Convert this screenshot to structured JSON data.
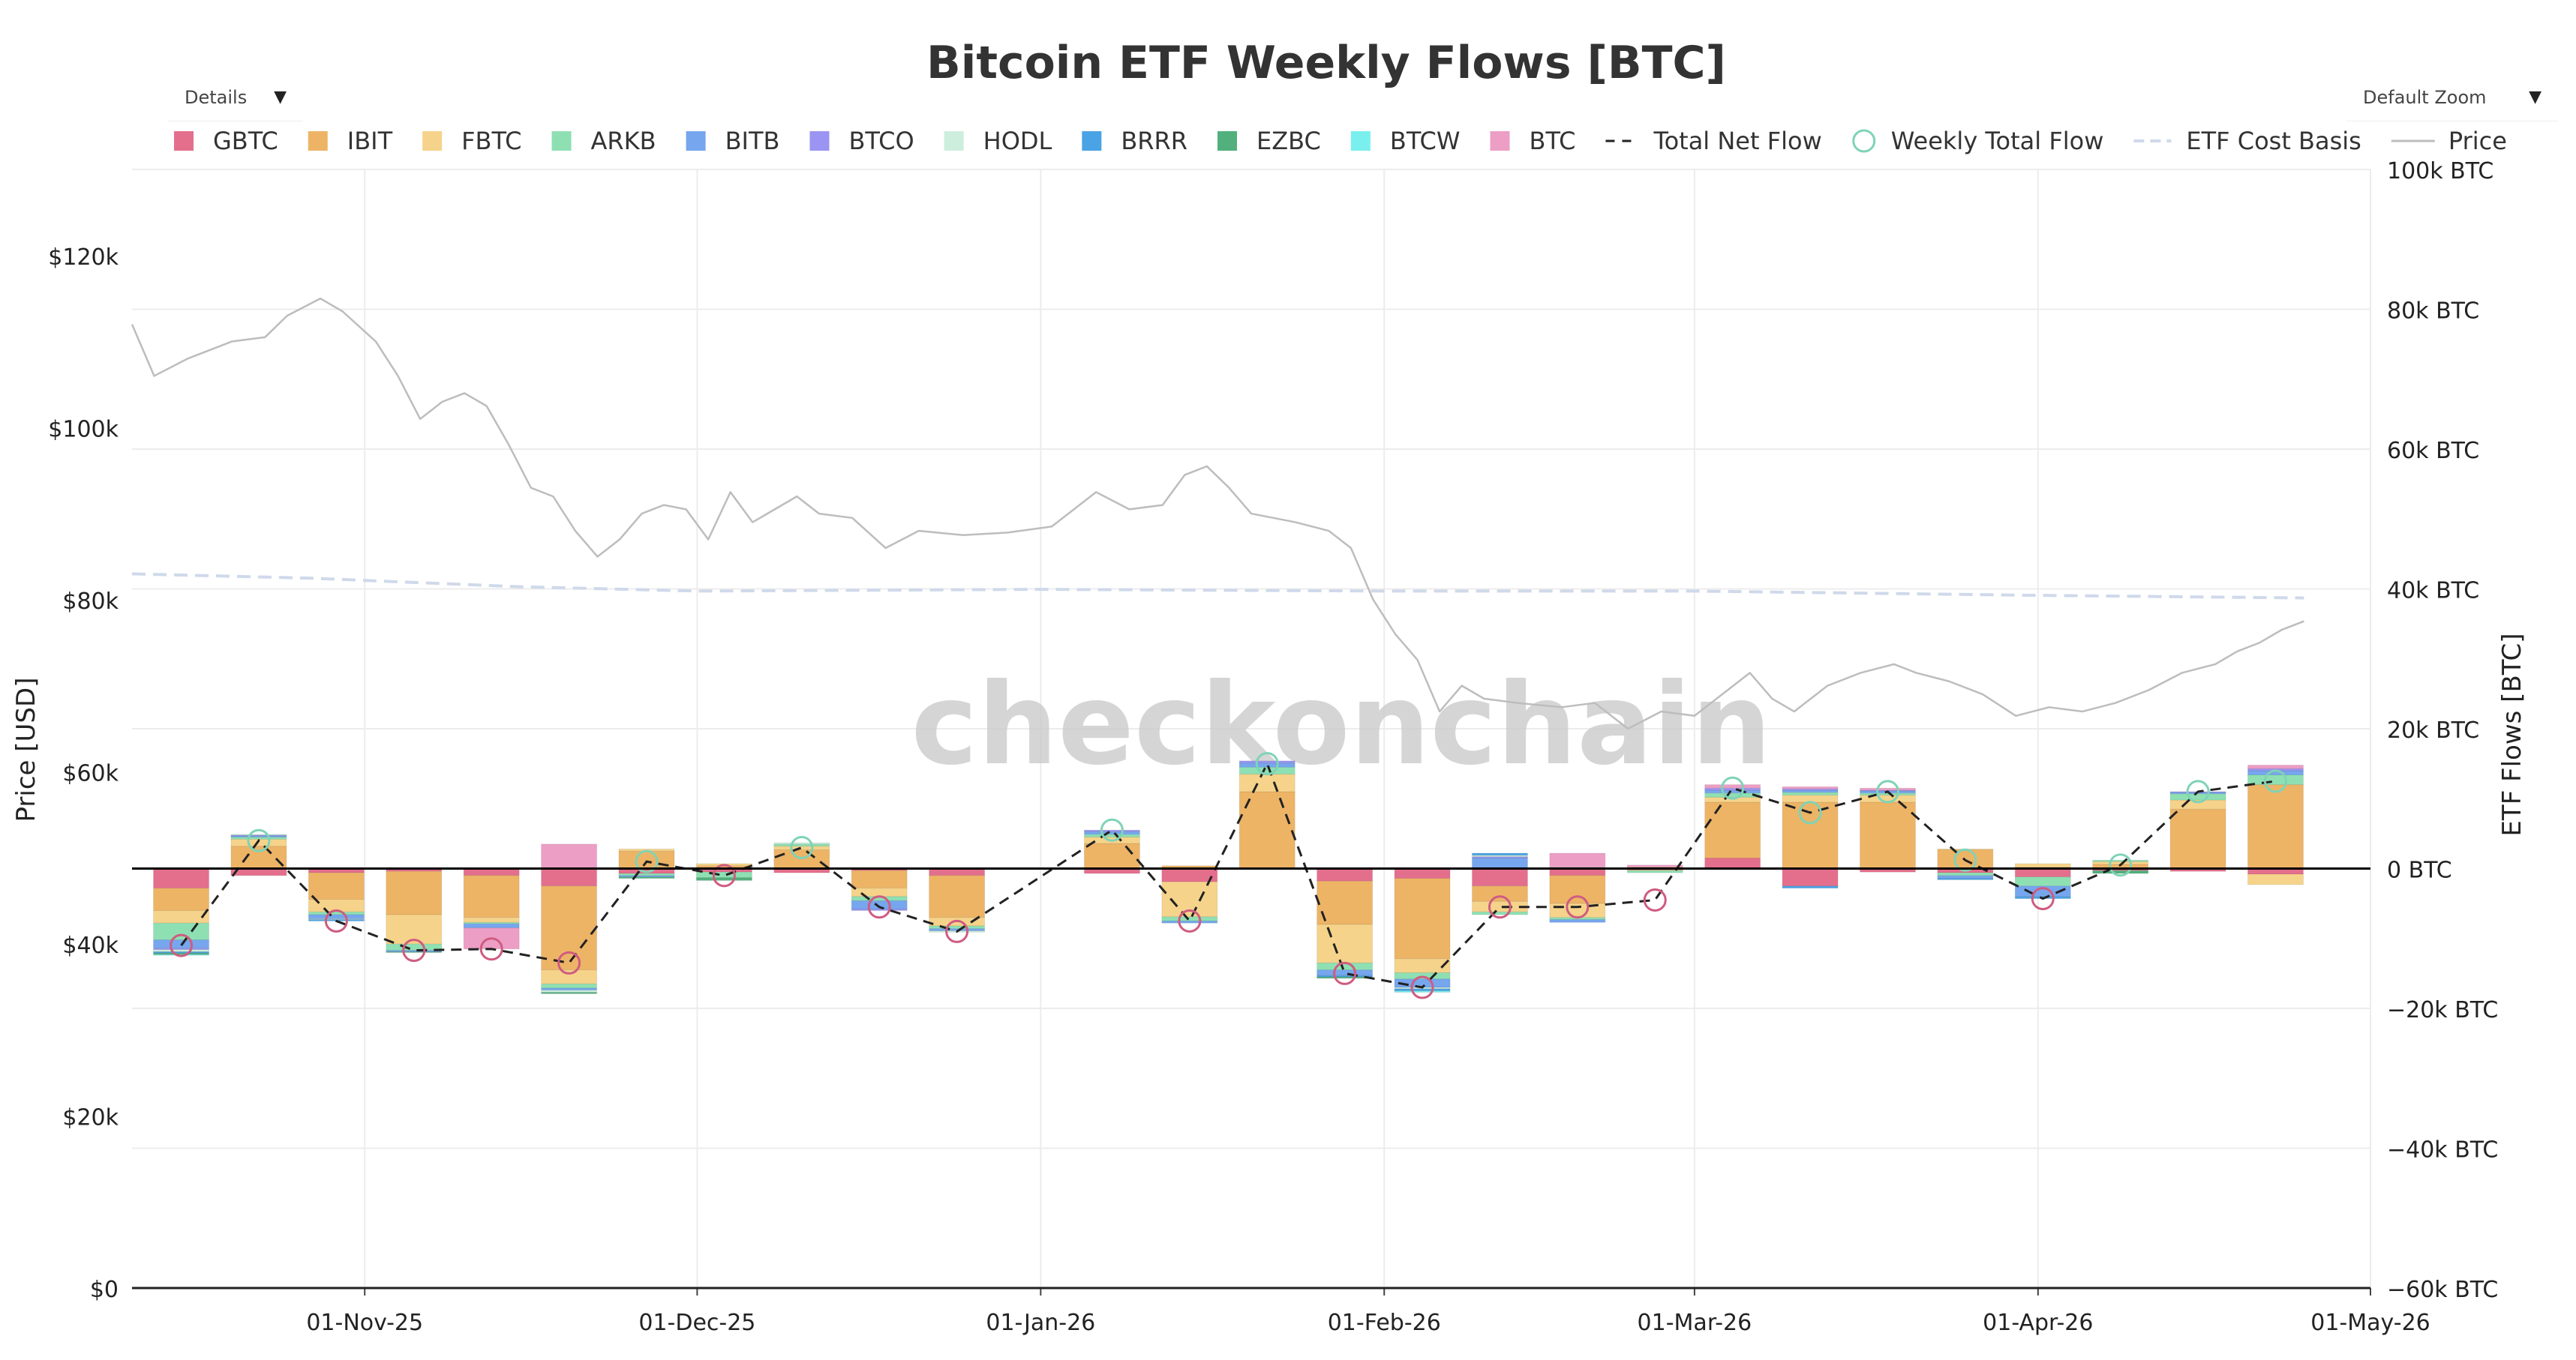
{
  "controls": {
    "details_label": "Details",
    "zoom_label": "Default Zoom",
    "caret": "▼"
  },
  "watermark": "checkonchain",
  "colors": {
    "GBTC": "#e46f8d",
    "IBIT": "#edb466",
    "FBTC": "#f6d38a",
    "ARKB": "#8ee0b3",
    "BITB": "#76a6ee",
    "BTCO": "#9b94f2",
    "HODL": "#cdeedd",
    "BRRR": "#4aa3e4",
    "EZBC": "#52b07c",
    "BTCW": "#7af0ee",
    "BTC": "#ec9ec5",
    "net_flow": "#222222",
    "marker_pos": "#7fd3b6",
    "marker_neg": "#cf5c80",
    "cost_basis": "#cfd9ea",
    "price": "#bdbdbd",
    "grid": "#ececec",
    "zero": "#000000"
  },
  "chart_data": {
    "type": "bar",
    "title": "Bitcoin ETF Weekly Flows [BTC]",
    "ylabel_left": "Price [USD]",
    "ylabel_right": "ETF Flows [BTC]",
    "y_left_range": [
      0,
      130000
    ],
    "y_right_range": [
      -60000,
      100000
    ],
    "x_range": [
      "2025-10-11",
      "2026-05-01"
    ],
    "left_ticks": [
      "$0",
      "$20k",
      "$40k",
      "$60k",
      "$80k",
      "$100k",
      "$120k"
    ],
    "right_ticks": [
      "−60k BTC",
      "−40k BTC",
      "−20k BTC",
      "0 BTC",
      "20k BTC",
      "40k BTC",
      "60k BTC",
      "80k BTC",
      "100k BTC"
    ],
    "x_ticks": [
      {
        "date": "2025-11-01",
        "label": "01-Nov-25"
      },
      {
        "date": "2025-12-01",
        "label": "01-Dec-25"
      },
      {
        "date": "2026-01-01",
        "label": "01-Jan-26"
      },
      {
        "date": "2026-02-01",
        "label": "01-Feb-26"
      },
      {
        "date": "2026-03-01",
        "label": "01-Mar-26"
      },
      {
        "date": "2026-04-01",
        "label": "01-Apr-26"
      },
      {
        "date": "2026-05-01",
        "label": "01-May-26"
      }
    ],
    "legend": [
      {
        "name": "GBTC",
        "kind": "square"
      },
      {
        "name": "IBIT",
        "kind": "square"
      },
      {
        "name": "FBTC",
        "kind": "square"
      },
      {
        "name": "ARKB",
        "kind": "square"
      },
      {
        "name": "BITB",
        "kind": "square"
      },
      {
        "name": "BTCO",
        "kind": "square"
      },
      {
        "name": "HODL",
        "kind": "square"
      },
      {
        "name": "BRRR",
        "kind": "square"
      },
      {
        "name": "EZBC",
        "kind": "square"
      },
      {
        "name": "BTCW",
        "kind": "square"
      },
      {
        "name": "BTC",
        "kind": "square"
      },
      {
        "name": "Total Net Flow",
        "kind": "dash"
      },
      {
        "name": "Weekly Total Flow",
        "kind": "circle"
      },
      {
        "name": "ETF Cost Basis",
        "kind": "lightdash"
      },
      {
        "name": "Price",
        "kind": "line"
      }
    ],
    "series_order": [
      "GBTC",
      "IBIT",
      "FBTC",
      "ARKB",
      "BITB",
      "BTCO",
      "HODL",
      "BRRR",
      "EZBC",
      "BTCW",
      "BTC"
    ],
    "weeks": [
      {
        "date": "2025-10-13",
        "total": -11000,
        "flows": {
          "GBTC": -2800,
          "IBIT": -3200,
          "FBTC": -1800,
          "ARKB": -2400,
          "BITB": -1200,
          "BTCO": -200,
          "HODL": -300,
          "BRRR": -200,
          "EZBC": -200,
          "BTCW": -100
        }
      },
      {
        "date": "2025-10-20",
        "total": 4000,
        "flows": {
          "IBIT": 3200,
          "FBTC": 1000,
          "ARKB": 300,
          "BITB": 200,
          "BTCO": 100,
          "HODL": 100,
          "GBTC": -1000
        }
      },
      {
        "date": "2025-10-27",
        "total": -7500,
        "flows": {
          "GBTC": -600,
          "IBIT": -3800,
          "FBTC": -1800,
          "ARKB": -400,
          "BITB": -600,
          "BRRR": -200,
          "HODL": -100
        }
      },
      {
        "date": "2025-11-03",
        "total": -11700,
        "flows": {
          "GBTC": -400,
          "IBIT": -6200,
          "FBTC": -4200,
          "ARKB": -900,
          "BITB": -200,
          "EZBC": -100
        }
      },
      {
        "date": "2025-11-10",
        "total": -11500,
        "flows": {
          "GBTC": -1000,
          "IBIT": -6000,
          "FBTC": -700,
          "ARKB": -200,
          "BITB": -600,
          "BTC": -3000
        }
      },
      {
        "date": "2025-11-17",
        "total": -13500,
        "flows": {
          "BTC": 3500,
          "GBTC": -2500,
          "IBIT": -12000,
          "FBTC": -2000,
          "ARKB": -600,
          "BITB": -300,
          "HODL": -300,
          "EZBC": -200
        }
      },
      {
        "date": "2025-11-24",
        "total": 1000,
        "flows": {
          "IBIT": 2500,
          "FBTC": 300,
          "GBTC": -700,
          "ARKB": -300,
          "BITB": -200,
          "EZBC": -200
        }
      },
      {
        "date": "2025-12-01",
        "total": -1000,
        "flows": {
          "IBIT": 400,
          "FBTC": 300,
          "GBTC": -500,
          "ARKB": -800,
          "EZBC": -400
        }
      },
      {
        "date": "2025-12-08",
        "total": 3000,
        "flows": {
          "IBIT": 2700,
          "FBTC": 500,
          "ARKB": 300,
          "HODL": 200,
          "GBTC": -600
        }
      },
      {
        "date": "2025-12-15",
        "total": -5500,
        "flows": {
          "GBTC": -300,
          "IBIT": -2500,
          "FBTC": -1200,
          "ARKB": -600,
          "BITB": -1200,
          "BTCO": -200
        }
      },
      {
        "date": "2025-12-22",
        "total": -9000,
        "flows": {
          "GBTC": -1000,
          "IBIT": -6000,
          "FBTC": -1200,
          "ARKB": -400,
          "BITB": -300,
          "HODL": -200
        }
      },
      {
        "date": "2026-01-05",
        "total": 5500,
        "flows": {
          "IBIT": 3600,
          "FBTC": 900,
          "ARKB": 400,
          "BITB": 400,
          "BTCO": 200,
          "GBTC": -700
        }
      },
      {
        "date": "2026-01-12",
        "total": -7500,
        "flows": {
          "IBIT": 400,
          "GBTC": -1900,
          "FBTC": -5000,
          "ARKB": -600,
          "BITB": -300
        }
      },
      {
        "date": "2026-01-19",
        "total": 15000,
        "flows": {
          "IBIT": 11000,
          "FBTC": 2500,
          "ARKB": 1000,
          "BITB": 600,
          "BTCO": 300
        }
      },
      {
        "date": "2026-01-26",
        "total": -15000,
        "flows": {
          "GBTC": -1800,
          "IBIT": -6200,
          "FBTC": -5500,
          "ARKB": -1000,
          "BITB": -800,
          "BRRR": -200,
          "EZBC": -200
        }
      },
      {
        "date": "2026-02-02",
        "total": -17000,
        "flows": {
          "GBTC": -1400,
          "IBIT": -11500,
          "FBTC": -2000,
          "ARKB": -900,
          "BITB": -1200,
          "BRRR": -300,
          "HODL": -200,
          "BTCW": -200
        }
      },
      {
        "date": "2026-02-09",
        "total": -5500,
        "flows": {
          "BITB": 1500,
          "BRRR": 300,
          "HODL": 200,
          "BTCO": 200,
          "GBTC": -2500,
          "IBIT": -2200,
          "FBTC": -1500,
          "ARKB": -400
        }
      },
      {
        "date": "2026-02-16",
        "total": -5500,
        "flows": {
          "BTC": 2000,
          "HODL": 200,
          "GBTC": -1000,
          "IBIT": -4000,
          "FBTC": -2000,
          "ARKB": -300,
          "BITB": -400
        }
      },
      {
        "date": "2026-02-23",
        "total": -4500,
        "flows": {
          "IBIT": 200,
          "BTC": 300,
          "GBTC": -200,
          "FBTC": -100,
          "ARKB": -300
        }
      },
      {
        "date": "2026-03-02",
        "total": 11500,
        "flows": {
          "GBTC": 1500,
          "IBIT": 8000,
          "FBTC": 700,
          "ARKB": 600,
          "BITB": 400,
          "BTCO": 300,
          "BTC": 500
        }
      },
      {
        "date": "2026-03-09",
        "total": 8000,
        "flows": {
          "IBIT": 9500,
          "FBTC": 1000,
          "ARKB": 400,
          "BITB": 300,
          "BTCO": 200,
          "BTC": 300,
          "GBTC": -2500,
          "BRRR": -300
        }
      },
      {
        "date": "2026-03-16",
        "total": 11000,
        "flows": {
          "IBIT": 9500,
          "FBTC": 1000,
          "ARKB": 300,
          "BITB": 300,
          "BTCO": 100,
          "BTC": 300,
          "GBTC": -500
        }
      },
      {
        "date": "2026-03-23",
        "total": 1200,
        "flows": {
          "IBIT": 2700,
          "FBTC": 100,
          "GBTC": -600,
          "ARKB": -400,
          "BITB": -400,
          "BRRR": -200
        }
      },
      {
        "date": "2026-03-30",
        "total": -4300,
        "flows": {
          "IBIT": 200,
          "FBTC": 500,
          "GBTC": -1200,
          "ARKB": -1300,
          "BITB": -1500,
          "BRRR": -300
        }
      },
      {
        "date": "2026-04-06",
        "total": 500,
        "flows": {
          "IBIT": 600,
          "FBTC": 400,
          "ARKB": 200,
          "GBTC": -300,
          "EZBC": -400
        }
      },
      {
        "date": "2026-04-13",
        "total": 11000,
        "flows": {
          "IBIT": 8500,
          "FBTC": 1300,
          "ARKB": 900,
          "BITB": 200,
          "BTCO": 100,
          "GBTC": -400
        }
      },
      {
        "date": "2026-04-20",
        "total": 12500,
        "flows": {
          "IBIT": 12000,
          "ARKB": 1400,
          "BITB": 600,
          "BTCO": 300,
          "BTC": 500,
          "GBTC": -800,
          "FBTC": -1500
        }
      }
    ],
    "price": [
      {
        "date": "2025-10-11",
        "value": 112000
      },
      {
        "date": "2025-10-13",
        "value": 106000
      },
      {
        "date": "2025-10-16",
        "value": 108000
      },
      {
        "date": "2025-10-20",
        "value": 110000
      },
      {
        "date": "2025-10-23",
        "value": 110500
      },
      {
        "date": "2025-10-25",
        "value": 113000
      },
      {
        "date": "2025-10-28",
        "value": 115000
      },
      {
        "date": "2025-10-30",
        "value": 113500
      },
      {
        "date": "2025-11-02",
        "value": 110000
      },
      {
        "date": "2025-11-04",
        "value": 106000
      },
      {
        "date": "2025-11-06",
        "value": 101000
      },
      {
        "date": "2025-11-08",
        "value": 103000
      },
      {
        "date": "2025-11-10",
        "value": 104000
      },
      {
        "date": "2025-11-12",
        "value": 102500
      },
      {
        "date": "2025-11-14",
        "value": 98000
      },
      {
        "date": "2025-11-16",
        "value": 93000
      },
      {
        "date": "2025-11-18",
        "value": 92000
      },
      {
        "date": "2025-11-20",
        "value": 88000
      },
      {
        "date": "2025-11-22",
        "value": 85000
      },
      {
        "date": "2025-11-24",
        "value": 87000
      },
      {
        "date": "2025-11-26",
        "value": 90000
      },
      {
        "date": "2025-11-28",
        "value": 91000
      },
      {
        "date": "2025-11-30",
        "value": 90500
      },
      {
        "date": "2025-12-02",
        "value": 87000
      },
      {
        "date": "2025-12-04",
        "value": 92500
      },
      {
        "date": "2025-12-06",
        "value": 89000
      },
      {
        "date": "2025-12-10",
        "value": 92000
      },
      {
        "date": "2025-12-12",
        "value": 90000
      },
      {
        "date": "2025-12-15",
        "value": 89500
      },
      {
        "date": "2025-12-18",
        "value": 86000
      },
      {
        "date": "2025-12-21",
        "value": 88000
      },
      {
        "date": "2025-12-25",
        "value": 87500
      },
      {
        "date": "2025-12-29",
        "value": 87800
      },
      {
        "date": "2026-01-02",
        "value": 88500
      },
      {
        "date": "2026-01-06",
        "value": 92500
      },
      {
        "date": "2026-01-09",
        "value": 90500
      },
      {
        "date": "2026-01-12",
        "value": 91000
      },
      {
        "date": "2026-01-14",
        "value": 94500
      },
      {
        "date": "2026-01-16",
        "value": 95500
      },
      {
        "date": "2026-01-18",
        "value": 93000
      },
      {
        "date": "2026-01-20",
        "value": 90000
      },
      {
        "date": "2026-01-24",
        "value": 89000
      },
      {
        "date": "2026-01-27",
        "value": 88000
      },
      {
        "date": "2026-01-29",
        "value": 86000
      },
      {
        "date": "2026-01-31",
        "value": 80000
      },
      {
        "date": "2026-02-02",
        "value": 76000
      },
      {
        "date": "2026-02-04",
        "value": 73000
      },
      {
        "date": "2026-02-06",
        "value": 67000
      },
      {
        "date": "2026-02-08",
        "value": 70000
      },
      {
        "date": "2026-02-10",
        "value": 68500
      },
      {
        "date": "2026-02-13",
        "value": 68000
      },
      {
        "date": "2026-02-17",
        "value": 67500
      },
      {
        "date": "2026-02-20",
        "value": 68000
      },
      {
        "date": "2026-02-23",
        "value": 65000
      },
      {
        "date": "2026-02-26",
        "value": 67000
      },
      {
        "date": "2026-03-01",
        "value": 66500
      },
      {
        "date": "2026-03-04",
        "value": 69500
      },
      {
        "date": "2026-03-06",
        "value": 71500
      },
      {
        "date": "2026-03-08",
        "value": 68500
      },
      {
        "date": "2026-03-10",
        "value": 67000
      },
      {
        "date": "2026-03-13",
        "value": 70000
      },
      {
        "date": "2026-03-16",
        "value": 71500
      },
      {
        "date": "2026-03-19",
        "value": 72500
      },
      {
        "date": "2026-03-21",
        "value": 71500
      },
      {
        "date": "2026-03-24",
        "value": 70500
      },
      {
        "date": "2026-03-27",
        "value": 69000
      },
      {
        "date": "2026-03-30",
        "value": 66500
      },
      {
        "date": "2026-04-02",
        "value": 67500
      },
      {
        "date": "2026-04-05",
        "value": 67000
      },
      {
        "date": "2026-04-08",
        "value": 68000
      },
      {
        "date": "2026-04-11",
        "value": 69500
      },
      {
        "date": "2026-04-14",
        "value": 71500
      },
      {
        "date": "2026-04-17",
        "value": 72500
      },
      {
        "date": "2026-04-19",
        "value": 74000
      },
      {
        "date": "2026-04-21",
        "value": 75000
      },
      {
        "date": "2026-04-23",
        "value": 76500
      },
      {
        "date": "2026-04-25",
        "value": 77500
      }
    ],
    "cost_basis": [
      {
        "date": "2025-10-11",
        "value": 83000
      },
      {
        "date": "2025-10-27",
        "value": 82500
      },
      {
        "date": "2025-11-15",
        "value": 81500
      },
      {
        "date": "2025-12-01",
        "value": 81000
      },
      {
        "date": "2026-01-01",
        "value": 81200
      },
      {
        "date": "2026-02-01",
        "value": 81000
      },
      {
        "date": "2026-03-01",
        "value": 81000
      },
      {
        "date": "2026-04-01",
        "value": 80500
      },
      {
        "date": "2026-04-25",
        "value": 80200
      }
    ]
  }
}
